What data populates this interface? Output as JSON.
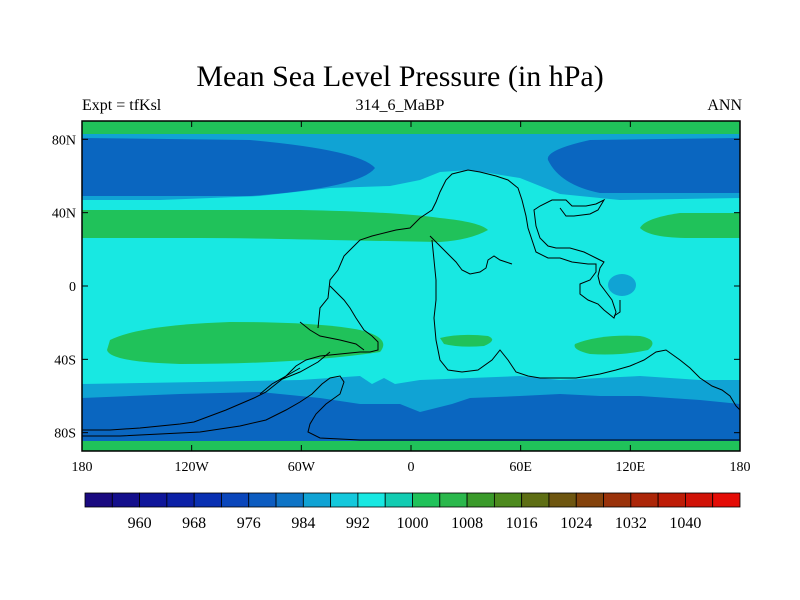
{
  "title": "Mean Sea Level Pressure (in hPa)",
  "subtitle_left": "Expt = tfKsl",
  "subtitle_center": "314_6_MaBP",
  "subtitle_right": "ANN",
  "axes": {
    "x_ticks": [
      {
        "label": "180",
        "lon": -180
      },
      {
        "label": "120W",
        "lon": -120
      },
      {
        "label": "60W",
        "lon": -60
      },
      {
        "label": "0",
        "lon": 0
      },
      {
        "label": "60E",
        "lon": 60
      },
      {
        "label": "120E",
        "lon": 120
      },
      {
        "label": "180",
        "lon": 180
      }
    ],
    "y_ticks": [
      {
        "label": "80N",
        "lat": 80
      },
      {
        "label": "40N",
        "lat": 40
      },
      {
        "label": "0",
        "lat": 0
      },
      {
        "label": "40S",
        "lat": -40
      },
      {
        "label": "80S",
        "lat": -80
      }
    ]
  },
  "colorbar": {
    "colors": [
      "#1a0a80",
      "#140f8c",
      "#0f169a",
      "#0b20a6",
      "#0930b2",
      "#0a46bb",
      "#0d5cc0",
      "#0e74c6",
      "#10a3d4",
      "#14c8dc",
      "#18e8e2",
      "#12ccb2",
      "#20c25a",
      "#2bb84c",
      "#3a9a2a",
      "#4d8a1e",
      "#5e6e14",
      "#6e5610",
      "#84420c",
      "#9a320a",
      "#ac2608",
      "#be1c06",
      "#d01206",
      "#e40c06"
    ],
    "labels": [
      "960",
      "968",
      "976",
      "984",
      "992",
      "1000",
      "1008",
      "1016",
      "1024",
      "1032",
      "1040"
    ]
  },
  "colors": {
    "ocean_base": "#18e8e2",
    "band_992": "#10a3d4",
    "band_984": "#0a66c0",
    "band_1008": "#20c25a",
    "coast": "#000000"
  }
}
